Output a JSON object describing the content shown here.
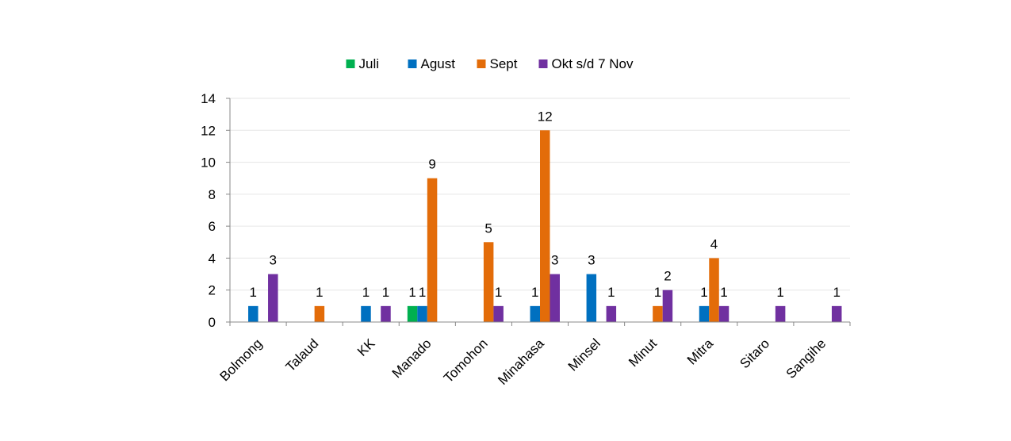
{
  "chart_data": {
    "type": "bar",
    "categories": [
      "Bolmong",
      "Talaud",
      "KK",
      "Manado",
      "Tomohon",
      "Minahasa",
      "Minsel",
      "Minut",
      "Mitra",
      "Sitaro",
      "Sangihe"
    ],
    "series": [
      {
        "name": "Juli",
        "color": "#00b050",
        "values": [
          null,
          null,
          null,
          1,
          null,
          null,
          null,
          null,
          null,
          null,
          null
        ]
      },
      {
        "name": "Agust",
        "color": "#0070c0",
        "values": [
          1,
          null,
          1,
          1,
          null,
          1,
          3,
          null,
          1,
          null,
          null
        ]
      },
      {
        "name": "Sept",
        "color": "#e36c09",
        "values": [
          null,
          1,
          null,
          9,
          5,
          12,
          null,
          1,
          4,
          null,
          null
        ]
      },
      {
        "name": "Okt s/d  7 Nov",
        "color": "#7030a0",
        "values": [
          3,
          null,
          1,
          null,
          1,
          3,
          1,
          2,
          1,
          1,
          1
        ]
      }
    ],
    "yticks": [
      "0",
      "2",
      "4",
      "6",
      "8",
      "10",
      "12",
      "14"
    ],
    "ylim": [
      0,
      14
    ],
    "grid": true,
    "legend": "top-center",
    "data_labels": true
  }
}
